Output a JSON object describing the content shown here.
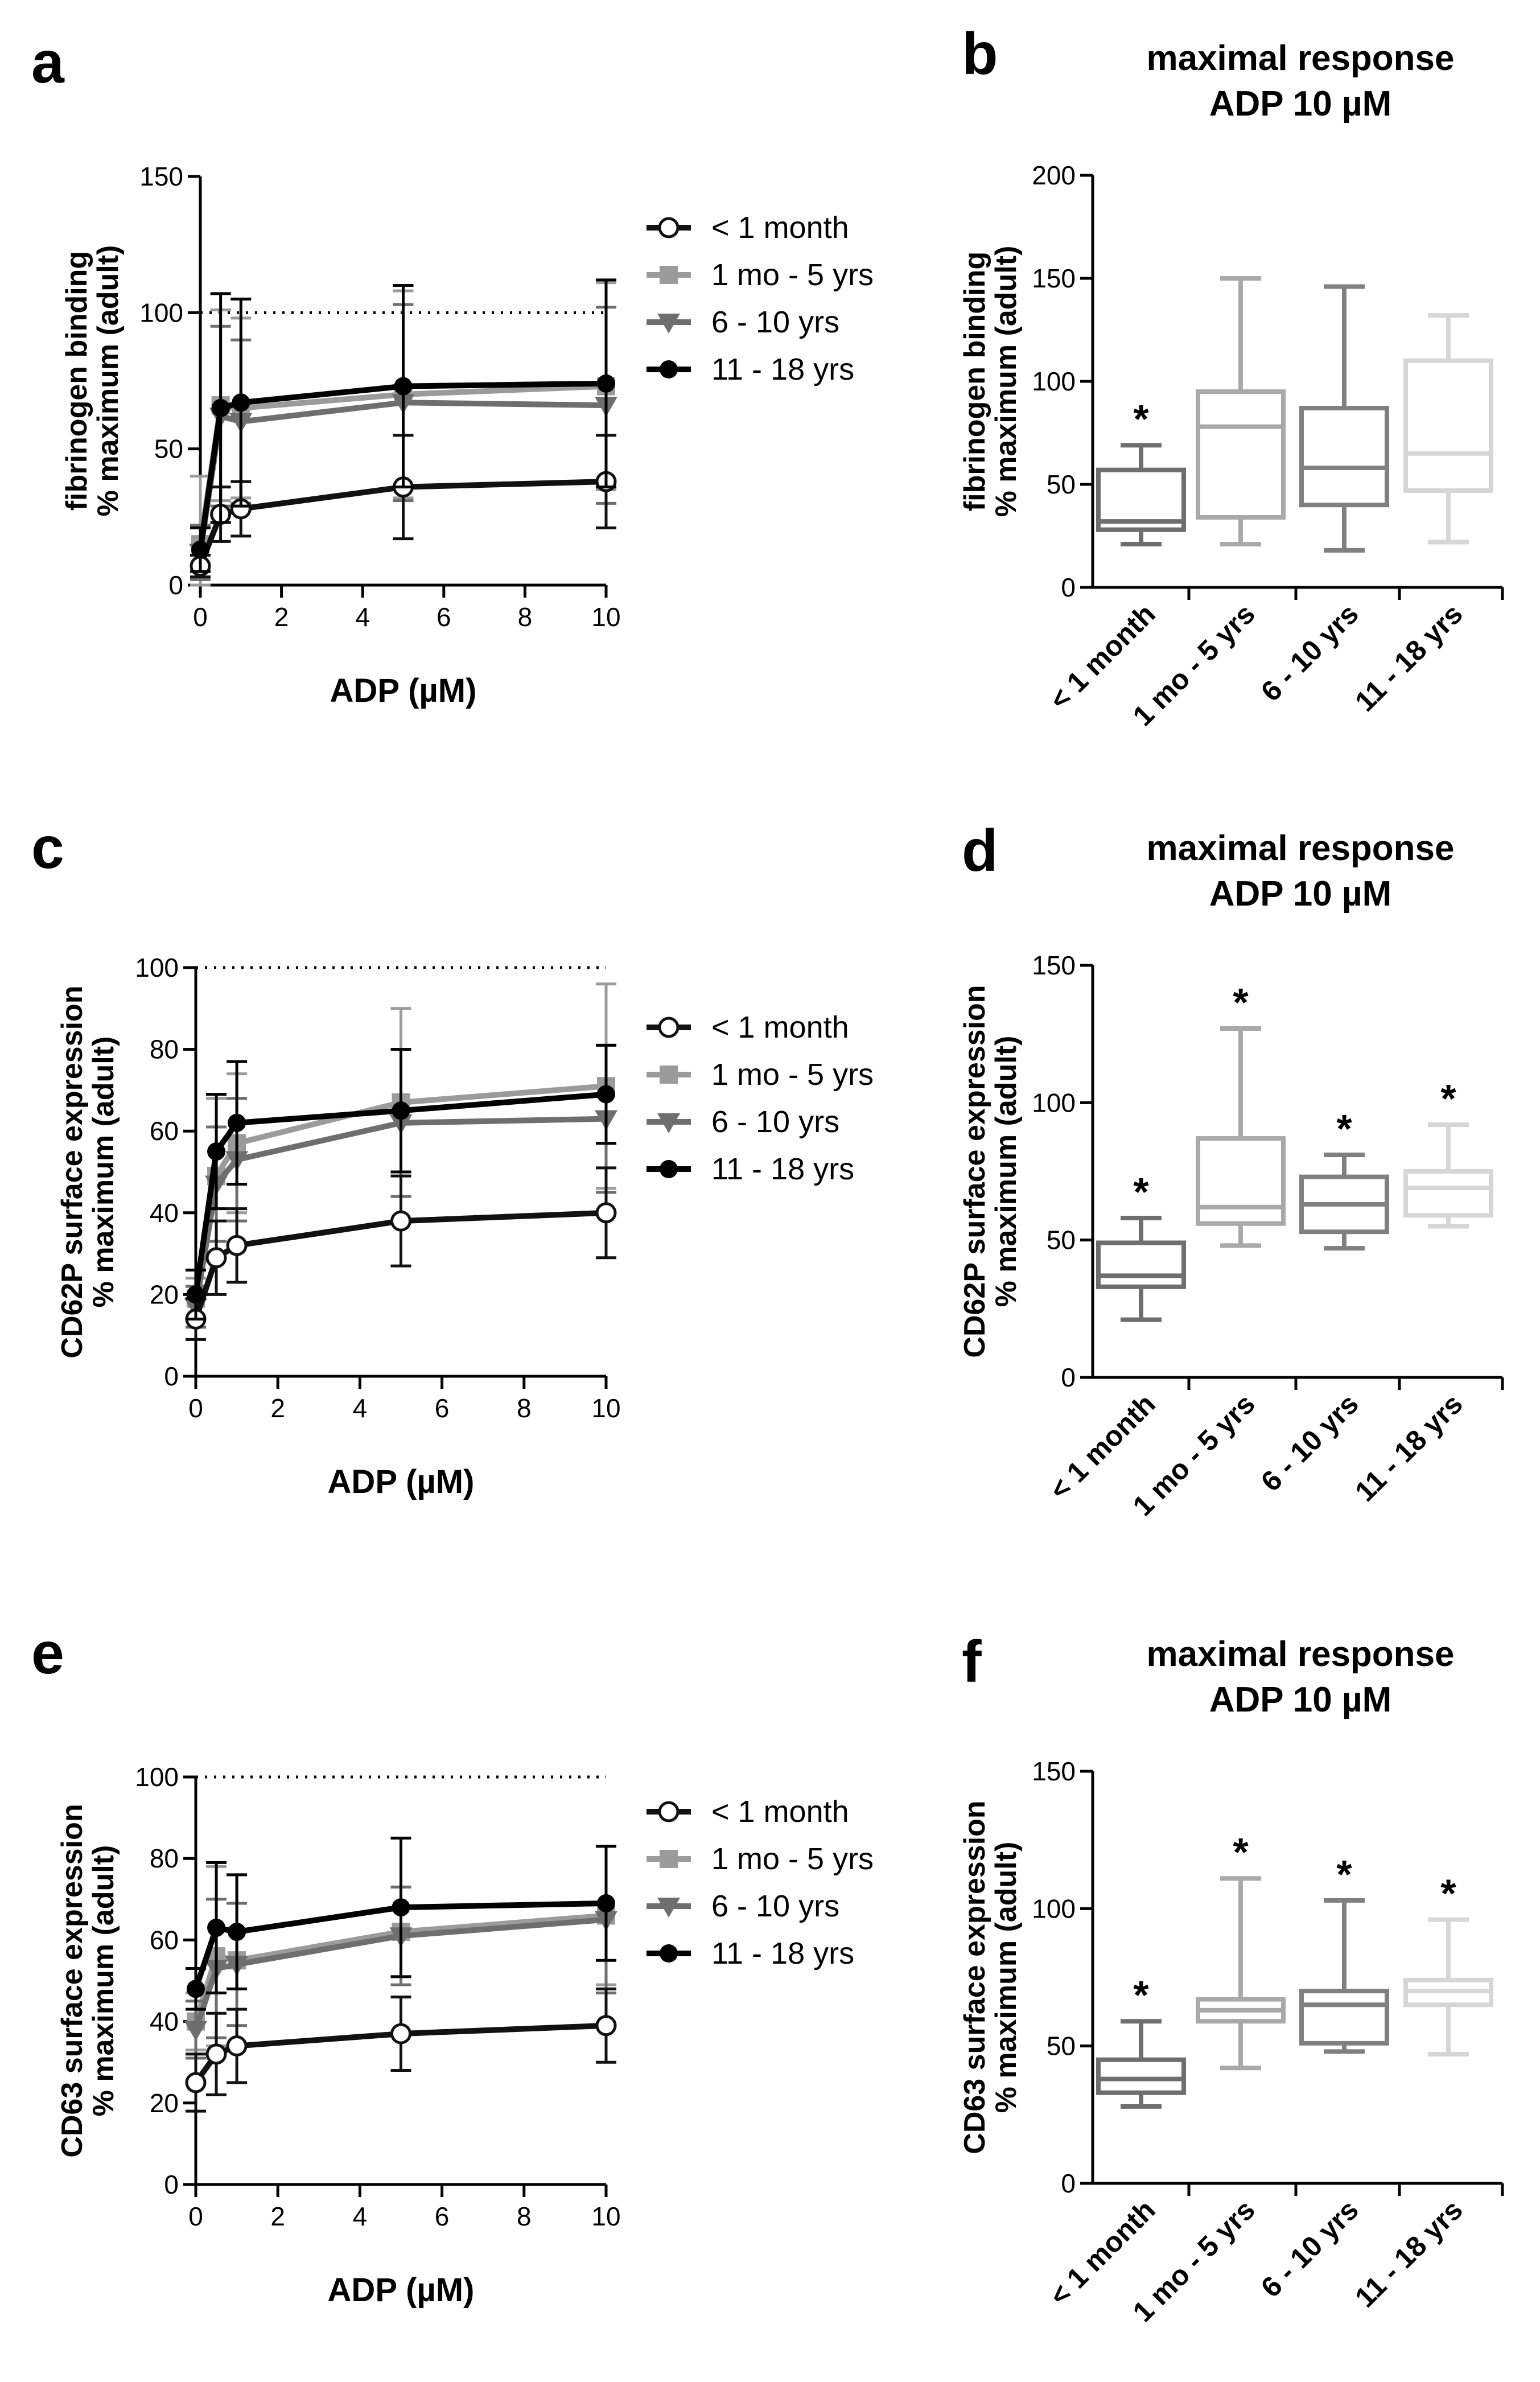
{
  "colors": {
    "lt1m": "#111111",
    "m1_5y": "#9b9b9b",
    "y6_10": "#6e6e6e",
    "y11_18": "#000000",
    "axis": "#000000",
    "ref_line": "#000000"
  },
  "legend": [
    "< 1 month",
    "1 mo - 5 yrs",
    "6 - 10 yrs",
    "11 - 18 yrs"
  ],
  "chart_data": [
    {
      "panel": "a",
      "type": "line",
      "title": "",
      "xlabel": "ADP (µM)",
      "ylabel": [
        "fibrinogen binding",
        "% maximum (adult)"
      ],
      "xlim": [
        0,
        10
      ],
      "ylim": [
        0,
        150
      ],
      "xticks": [
        0,
        2,
        4,
        6,
        8,
        10
      ],
      "yticks": [
        0,
        50,
        100,
        150
      ],
      "reference_line": 100,
      "x": [
        0,
        0.5,
        1,
        5,
        10
      ],
      "series": [
        {
          "name": "< 1 month",
          "marker": "open-circle",
          "values": [
            7,
            26,
            28,
            36,
            38
          ],
          "err": [
            4,
            10,
            10,
            19,
            17
          ]
        },
        {
          "name": "1 mo - 5 yrs",
          "marker": "square",
          "values": [
            15,
            66,
            65,
            70,
            73
          ],
          "err": [
            25,
            35,
            33,
            38,
            38
          ]
        },
        {
          "name": "6 - 10 yrs",
          "marker": "triangle-down",
          "values": [
            12,
            62,
            60,
            67,
            66
          ],
          "err": [
            10,
            33,
            30,
            36,
            36
          ]
        },
        {
          "name": "11 - 18 yrs",
          "marker": "circle",
          "values": [
            13,
            65,
            67,
            73,
            74
          ],
          "err": [
            8,
            42,
            38,
            37,
            38
          ]
        }
      ]
    },
    {
      "panel": "b",
      "type": "box",
      "title": [
        "maximal response",
        "ADP 10 µM"
      ],
      "ylabel": [
        "fibrinogen binding",
        "% maximum (adult)"
      ],
      "ylim": [
        0,
        200
      ],
      "yticks": [
        0,
        50,
        100,
        150,
        200
      ],
      "categories": [
        "< 1 month",
        "1 mo - 5 yrs",
        "6 - 10 yrs",
        "11 - 18 yrs"
      ],
      "boxes": [
        {
          "min": 21,
          "q1": 28,
          "median": 32,
          "q3": 57,
          "max": 69
        },
        {
          "min": 21,
          "q1": 34,
          "median": 78,
          "q3": 95,
          "max": 150
        },
        {
          "min": 18,
          "q1": 40,
          "median": 58,
          "q3": 87,
          "max": 146
        },
        {
          "min": 22,
          "q1": 47,
          "median": 65,
          "q3": 110,
          "max": 132
        }
      ],
      "significance": [
        "*",
        "",
        "",
        ""
      ]
    },
    {
      "panel": "c",
      "type": "line",
      "xlabel": "ADP (µM)",
      "ylabel": [
        "CD62P surface expression",
        "% maximum (adult)"
      ],
      "xlim": [
        0,
        10
      ],
      "ylim": [
        0,
        100
      ],
      "xticks": [
        0,
        2,
        4,
        6,
        8,
        10
      ],
      "yticks": [
        0,
        20,
        40,
        60,
        80,
        100
      ],
      "reference_line": 100,
      "x": [
        0,
        0.5,
        1,
        5,
        10
      ],
      "series": [
        {
          "name": "< 1 month",
          "marker": "open-circle",
          "values": [
            14,
            29,
            32,
            38,
            40
          ],
          "err": [
            5,
            9,
            9,
            11,
            11
          ]
        },
        {
          "name": "1 mo - 5 yrs",
          "marker": "square",
          "values": [
            19,
            49,
            57,
            67,
            71
          ],
          "err": [
            5,
            19,
            17,
            23,
            25
          ]
        },
        {
          "name": "6 - 10 yrs",
          "marker": "triangle-down",
          "values": [
            17,
            47,
            53,
            62,
            63
          ],
          "err": [
            5,
            14,
            15,
            18,
            18
          ]
        },
        {
          "name": "11 - 18 yrs",
          "marker": "circle",
          "values": [
            20,
            55,
            62,
            65,
            69
          ],
          "err": [
            6,
            14,
            15,
            15,
            12
          ]
        }
      ]
    },
    {
      "panel": "d",
      "type": "box",
      "title": [
        "maximal response",
        "ADP 10 µM"
      ],
      "ylabel": [
        "CD62P surface expression",
        "% maximum (adult)"
      ],
      "ylim": [
        0,
        150
      ],
      "yticks": [
        0,
        50,
        100,
        150
      ],
      "categories": [
        "< 1 month",
        "1 mo - 5 yrs",
        "6 - 10 yrs",
        "11 - 18 yrs"
      ],
      "boxes": [
        {
          "min": 21,
          "q1": 33,
          "median": 37,
          "q3": 49,
          "max": 58
        },
        {
          "min": 48,
          "q1": 56,
          "median": 62,
          "q3": 87,
          "max": 127
        },
        {
          "min": 47,
          "q1": 53,
          "median": 63,
          "q3": 73,
          "max": 81
        },
        {
          "min": 55,
          "q1": 59,
          "median": 69,
          "q3": 75,
          "max": 92
        }
      ],
      "significance": [
        "*",
        "*",
        "*",
        "*"
      ]
    },
    {
      "panel": "e",
      "type": "line",
      "xlabel": "ADP (µM)",
      "ylabel": [
        "CD63 surface expression",
        "% maximum (adult)"
      ],
      "xlim": [
        0,
        10
      ],
      "ylim": [
        0,
        100
      ],
      "xticks": [
        0,
        2,
        4,
        6,
        8,
        10
      ],
      "yticks": [
        0,
        20,
        40,
        60,
        80,
        100
      ],
      "reference_line": 100,
      "x": [
        0,
        0.5,
        1,
        5,
        10
      ],
      "series": [
        {
          "name": "< 1 month",
          "marker": "open-circle",
          "values": [
            25,
            32,
            34,
            37,
            39
          ],
          "err": [
            7,
            10,
            9,
            9,
            9
          ]
        },
        {
          "name": "1 mo - 5 yrs",
          "marker": "square",
          "values": [
            40,
            56,
            55,
            62,
            66
          ],
          "err": [
            7,
            22,
            21,
            11,
            17
          ]
        },
        {
          "name": "6 - 10 yrs",
          "marker": "triangle-down",
          "values": [
            38,
            53,
            54,
            61,
            65
          ],
          "err": [
            7,
            17,
            15,
            12,
            18
          ]
        },
        {
          "name": "11 - 18 yrs",
          "marker": "circle",
          "values": [
            48,
            63,
            62,
            68,
            69
          ],
          "err": [
            5,
            16,
            14,
            17,
            14
          ]
        }
      ]
    },
    {
      "panel": "f",
      "type": "box",
      "title": [
        "maximal response",
        "ADP 10 µM"
      ],
      "ylabel": [
        "CD63 surface expression",
        "% maximum (adult)"
      ],
      "ylim": [
        0,
        150
      ],
      "yticks": [
        0,
        50,
        100,
        150
      ],
      "categories": [
        "< 1 month",
        "1 mo - 5 yrs",
        "6 - 10 yrs",
        "11 - 18 yrs"
      ],
      "boxes": [
        {
          "min": 28,
          "q1": 33,
          "median": 38,
          "q3": 45,
          "max": 59
        },
        {
          "min": 42,
          "q1": 59,
          "median": 63,
          "q3": 67,
          "max": 111
        },
        {
          "min": 48,
          "q1": 51,
          "median": 65,
          "q3": 70,
          "max": 103
        },
        {
          "min": 47,
          "q1": 65,
          "median": 70,
          "q3": 74,
          "max": 96
        }
      ],
      "significance": [
        "*",
        "*",
        "*",
        "*"
      ]
    }
  ]
}
